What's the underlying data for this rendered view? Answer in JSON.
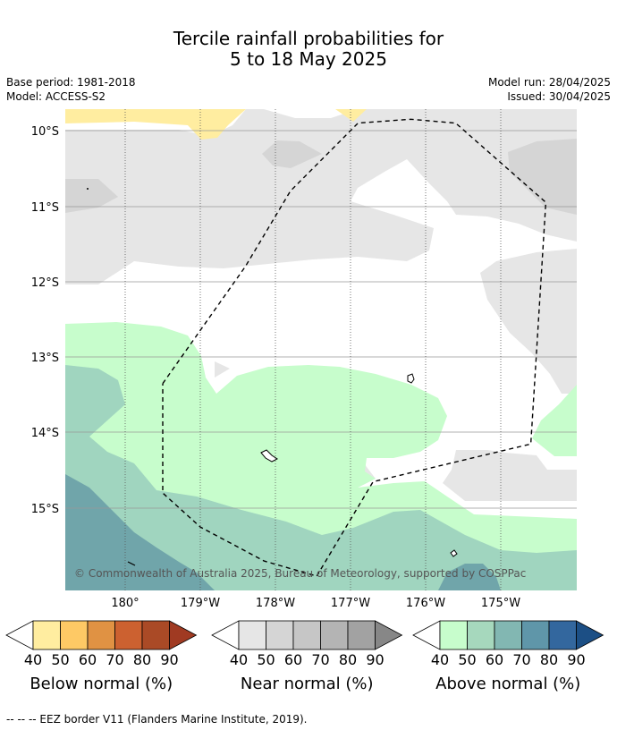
{
  "header": {
    "title_line1": "Tercile rainfall probabilities for",
    "title_line2": "5 to 18 May 2025",
    "base_period": "Base period: 1981-2018",
    "model": "Model: ACCESS-S2",
    "model_run": "Model run: 28/04/2025",
    "issued": "Issued: 30/04/2025"
  },
  "map": {
    "lat_labels": [
      "10°S",
      "11°S",
      "12°S",
      "13°S",
      "14°S",
      "15°S"
    ],
    "lon_labels": [
      "180°",
      "179°W",
      "178°W",
      "177°W",
      "176°W",
      "175°W"
    ],
    "copyright": "© Commonwealth of Australia 2025, Bureau of Meteorology, supported by COSPPac",
    "eez_outline": [
      [
        179.5,
        -13.35
      ],
      [
        178.4,
        -11.8
      ],
      [
        177.8,
        -10.8
      ],
      [
        176.9,
        -9.9
      ],
      [
        176.2,
        -9.85
      ],
      [
        175.6,
        -9.9
      ],
      [
        174.4,
        -10.95
      ],
      [
        174.6,
        -14.15
      ],
      [
        176.7,
        -14.65
      ],
      [
        177.45,
        -15.9
      ],
      [
        178.15,
        -15.7
      ],
      [
        179.0,
        -15.25
      ],
      [
        179.5,
        -14.8
      ],
      [
        179.5,
        -13.35
      ]
    ]
  },
  "colorbars": [
    {
      "title": "Below normal (%)",
      "ticks": [
        "40",
        "50",
        "60",
        "70",
        "80",
        "90"
      ],
      "colors": [
        "#ffeda0",
        "#fec965",
        "#e09243",
        "#cc6130",
        "#aa4a26",
        "#a03a22"
      ]
    },
    {
      "title": "Near normal (%)",
      "ticks": [
        "40",
        "50",
        "60",
        "70",
        "80",
        "90"
      ],
      "colors": [
        "#e6e6e6",
        "#d5d5d5",
        "#c6c6c6",
        "#b4b4b4",
        "#a2a2a2",
        "#878787"
      ]
    },
    {
      "title": "Above normal (%)",
      "ticks": [
        "40",
        "50",
        "60",
        "70",
        "80",
        "90"
      ],
      "colors": [
        "#c7fdcc",
        "#a6d8bd",
        "#82b7b2",
        "#5f96a9",
        "#33679e",
        "#1c4f85"
      ]
    }
  ],
  "footnote": "--  --  -- EEZ border V11 (Flanders Marine Institute, 2019).",
  "colors": {
    "below_light": "#ffeda0",
    "near_light": "#e6e6e6",
    "near_mid": "#d5d5d5",
    "above_light": "#c7fdcc",
    "above_mid": "#a0d5bf",
    "above_dark": "#70a5aa"
  }
}
